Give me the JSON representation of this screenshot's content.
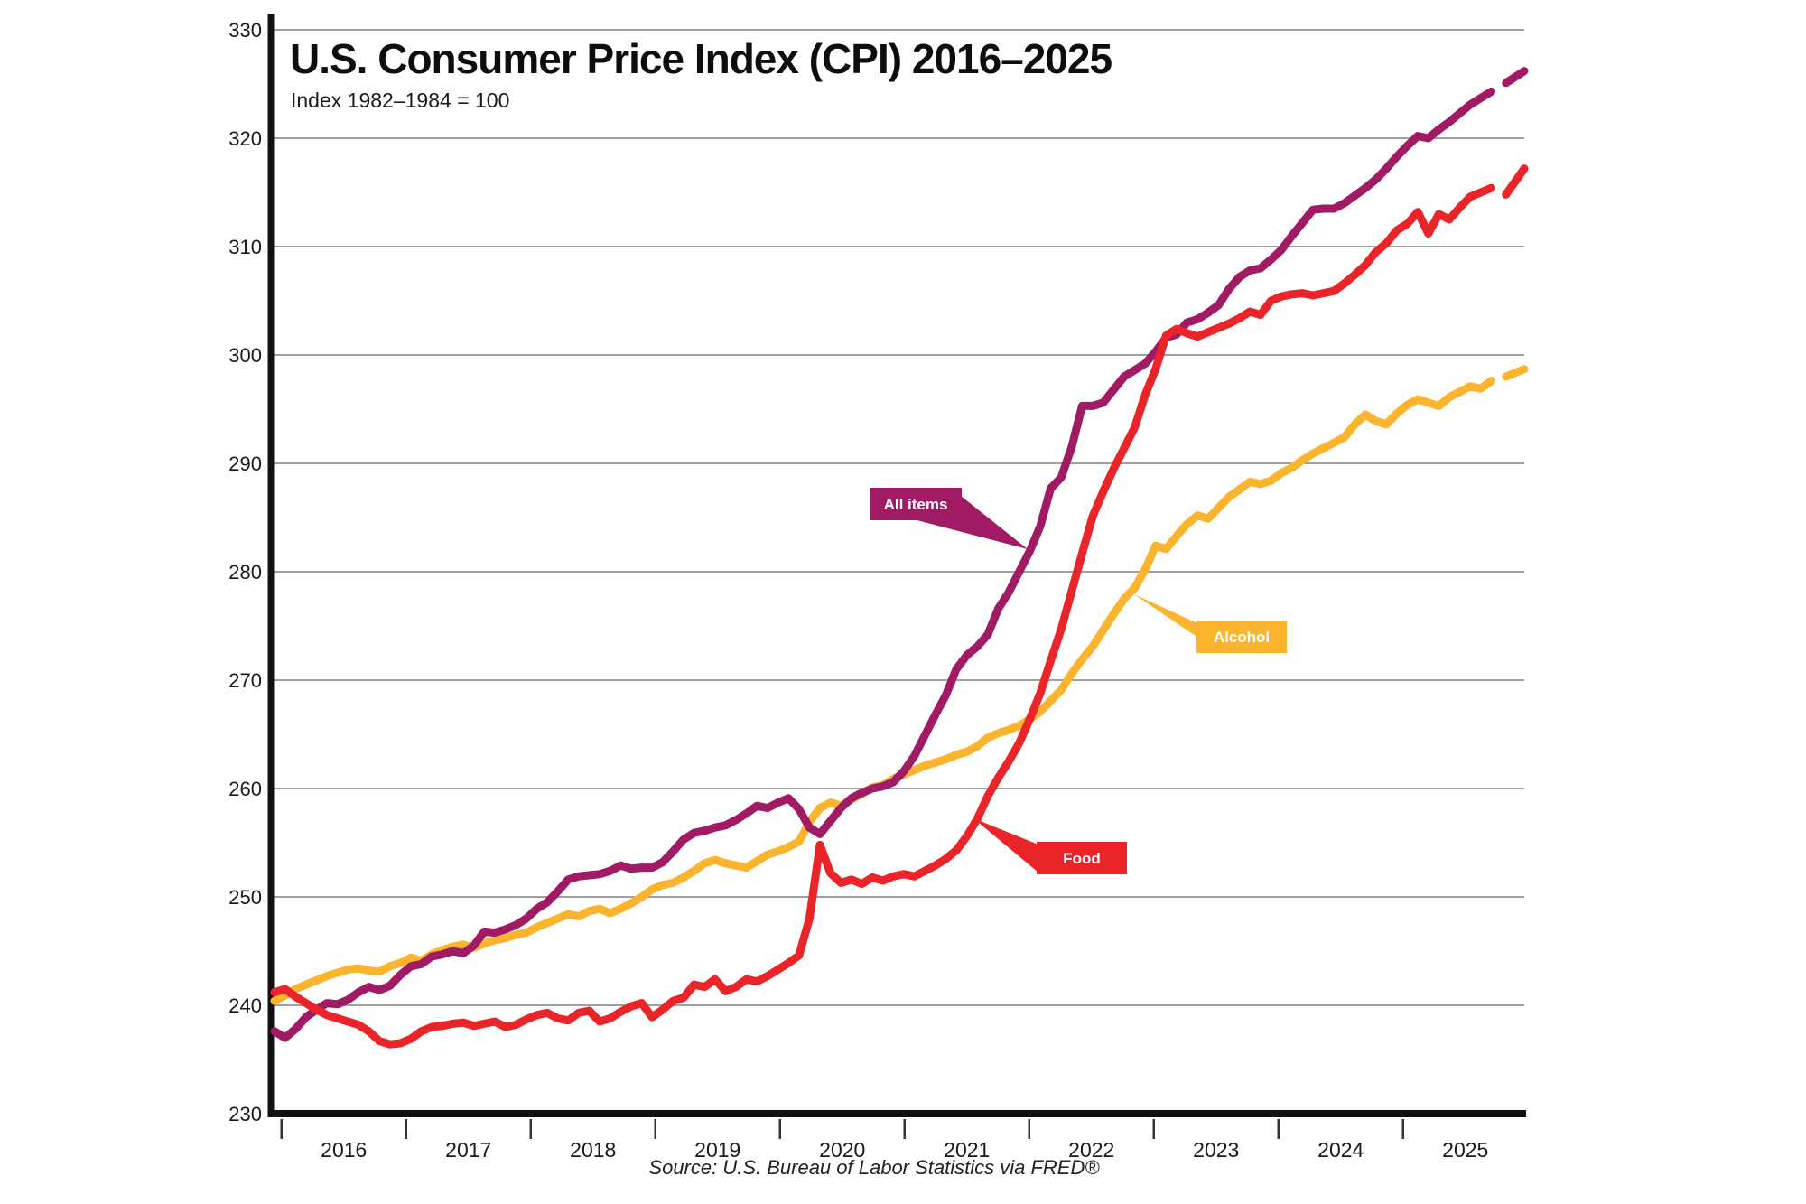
{
  "title": "U.S. Consumer Price Index (CPI) 2016–2025",
  "subtitle": "Index 1982–1984 = 100",
  "source": "Source: U.S. Bureau of Labor Statistics via FRED®",
  "colors": {
    "all_items": "#A01B63",
    "food": "#E92529",
    "alcohol": "#FAB42D",
    "grid": "#818181",
    "axis": "#111111",
    "text": "#111111",
    "background": "#FFFFFF"
  },
  "chart_data": {
    "type": "line",
    "title": "U.S. Consumer Price Index (CPI) 2016–2025",
    "subtitle": "Index 1982–1984 = 100",
    "source": "Source: U.S. Bureau of Labor Statistics via FRED®",
    "frequency": "monthly",
    "start_month": "2016-01",
    "end_month": "2025-09",
    "grid": true,
    "legend_position": "inline-callouts",
    "xlabel": "",
    "ylabel": "Index 1982–1984 = 100",
    "ylim": [
      230,
      330
    ],
    "y_ticks": [
      230,
      240,
      250,
      260,
      270,
      280,
      290,
      300,
      310,
      320,
      330
    ],
    "x_tick_years": [
      "2016",
      "2017",
      "2018",
      "2019",
      "2020",
      "2021",
      "2022",
      "2023",
      "2024",
      "2025"
    ],
    "series": [
      {
        "name": "Alcohol",
        "color": "#FAB42D",
        "dashed_tail_values": [
          298.0,
          298.7
        ],
        "values": [
          240.4,
          240.9,
          241.5,
          241.9,
          242.3,
          242.7,
          243.0,
          243.3,
          243.4,
          243.2,
          243.1,
          243.6,
          243.9,
          244.4,
          244.1,
          244.7,
          245.1,
          245.4,
          245.6,
          245.3,
          245.7,
          246.0,
          246.2,
          246.5,
          246.7,
          247.2,
          247.6,
          248.0,
          248.4,
          248.2,
          248.7,
          248.9,
          248.5,
          248.9,
          249.4,
          250.0,
          250.7,
          251.1,
          251.3,
          251.8,
          252.4,
          253.1,
          253.4,
          253.1,
          252.9,
          252.7,
          253.3,
          253.9,
          254.2,
          254.6,
          255.1,
          256.9,
          258.2,
          258.7,
          258.4,
          259.0,
          259.5,
          260.1,
          260.3,
          260.9,
          261.3,
          261.7,
          262.1,
          262.4,
          262.7,
          263.1,
          263.4,
          263.9,
          264.7,
          265.1,
          265.4,
          265.8,
          266.4,
          267.1,
          268.1,
          269.1,
          270.6,
          271.9,
          273.1,
          274.6,
          276.1,
          277.5,
          278.5,
          280.2,
          282.4,
          282.1,
          283.3,
          284.4,
          285.2,
          284.9,
          285.9,
          286.9,
          287.6,
          288.3,
          288.1,
          288.4,
          289.1,
          289.6,
          290.3,
          290.9,
          291.4,
          291.9,
          292.4,
          293.6,
          294.5,
          293.9,
          293.6,
          294.6,
          295.4,
          295.9,
          295.6,
          295.3,
          296.1,
          296.6,
          297.1,
          296.9,
          297.6
        ]
      },
      {
        "name": "All items",
        "color": "#A01B63",
        "dashed_tail_values": [
          325.1,
          326.2
        ],
        "values": [
          237.6,
          237.0,
          237.8,
          238.9,
          239.6,
          240.2,
          240.1,
          240.5,
          241.2,
          241.7,
          241.4,
          241.8,
          242.8,
          243.6,
          243.8,
          244.5,
          244.7,
          245.0,
          244.8,
          245.5,
          246.8,
          246.7,
          247.0,
          247.4,
          248.0,
          248.9,
          249.5,
          250.5,
          251.6,
          251.9,
          252.0,
          252.1,
          252.4,
          252.9,
          252.6,
          252.7,
          252.7,
          253.2,
          254.2,
          255.3,
          255.9,
          256.1,
          256.4,
          256.6,
          257.1,
          257.7,
          258.4,
          258.2,
          258.7,
          259.1,
          258.1,
          256.4,
          255.8,
          257.0,
          258.2,
          259.1,
          259.6,
          260.0,
          260.2,
          260.6,
          261.6,
          263.0,
          264.9,
          266.8,
          268.6,
          271.0,
          272.3,
          273.1,
          274.2,
          276.6,
          278.1,
          280.0,
          281.9,
          284.2,
          287.7,
          288.7,
          291.5,
          295.3,
          295.3,
          295.6,
          296.8,
          298.0,
          298.6,
          299.2,
          300.3,
          301.6,
          301.9,
          303.0,
          303.3,
          303.9,
          304.6,
          306.1,
          307.2,
          307.8,
          308.0,
          308.8,
          309.7,
          311.0,
          312.2,
          313.4,
          313.5,
          313.5,
          314.0,
          314.7,
          315.4,
          316.2,
          317.2,
          318.3,
          319.3,
          320.2,
          320.0,
          320.8,
          321.5,
          322.3,
          323.1,
          323.7,
          324.3
        ]
      },
      {
        "name": "Food",
        "color": "#E92529",
        "dashed_tail_values": [
          314.8,
          317.2
        ],
        "values": [
          241.2,
          241.5,
          240.8,
          240.2,
          239.6,
          239.1,
          238.8,
          238.5,
          238.2,
          237.6,
          236.7,
          236.4,
          236.5,
          236.9,
          237.6,
          238.0,
          238.1,
          238.3,
          238.4,
          238.1,
          238.3,
          238.5,
          238.0,
          238.2,
          238.7,
          239.1,
          239.3,
          238.8,
          238.6,
          239.3,
          239.5,
          238.5,
          238.8,
          239.4,
          239.9,
          240.2,
          238.9,
          239.6,
          240.4,
          240.7,
          241.9,
          241.7,
          242.4,
          241.3,
          241.7,
          242.4,
          242.2,
          242.7,
          243.3,
          243.9,
          244.6,
          248.0,
          254.8,
          252.2,
          251.3,
          251.6,
          251.2,
          251.8,
          251.5,
          251.9,
          252.1,
          251.9,
          252.4,
          252.9,
          253.5,
          254.3,
          255.6,
          257.2,
          259.3,
          261.0,
          262.5,
          264.2,
          266.4,
          268.8,
          271.8,
          274.7,
          278.2,
          281.7,
          285.1,
          287.4,
          289.5,
          291.4,
          293.3,
          296.3,
          298.7,
          301.8,
          302.4,
          302.0,
          301.7,
          302.1,
          302.5,
          302.9,
          303.4,
          304.0,
          303.7,
          305.0,
          305.4,
          305.6,
          305.7,
          305.5,
          305.7,
          305.9,
          306.6,
          307.4,
          308.3,
          309.5,
          310.3,
          311.5,
          312.1,
          313.2,
          311.2,
          313.0,
          312.5,
          313.6,
          314.6,
          315.0,
          315.4
        ]
      }
    ],
    "annotations": [
      {
        "series": "All items",
        "label": "All items"
      },
      {
        "series": "Alcohol",
        "label": "Alcohol"
      },
      {
        "series": "Food",
        "label": "Food"
      }
    ]
  }
}
